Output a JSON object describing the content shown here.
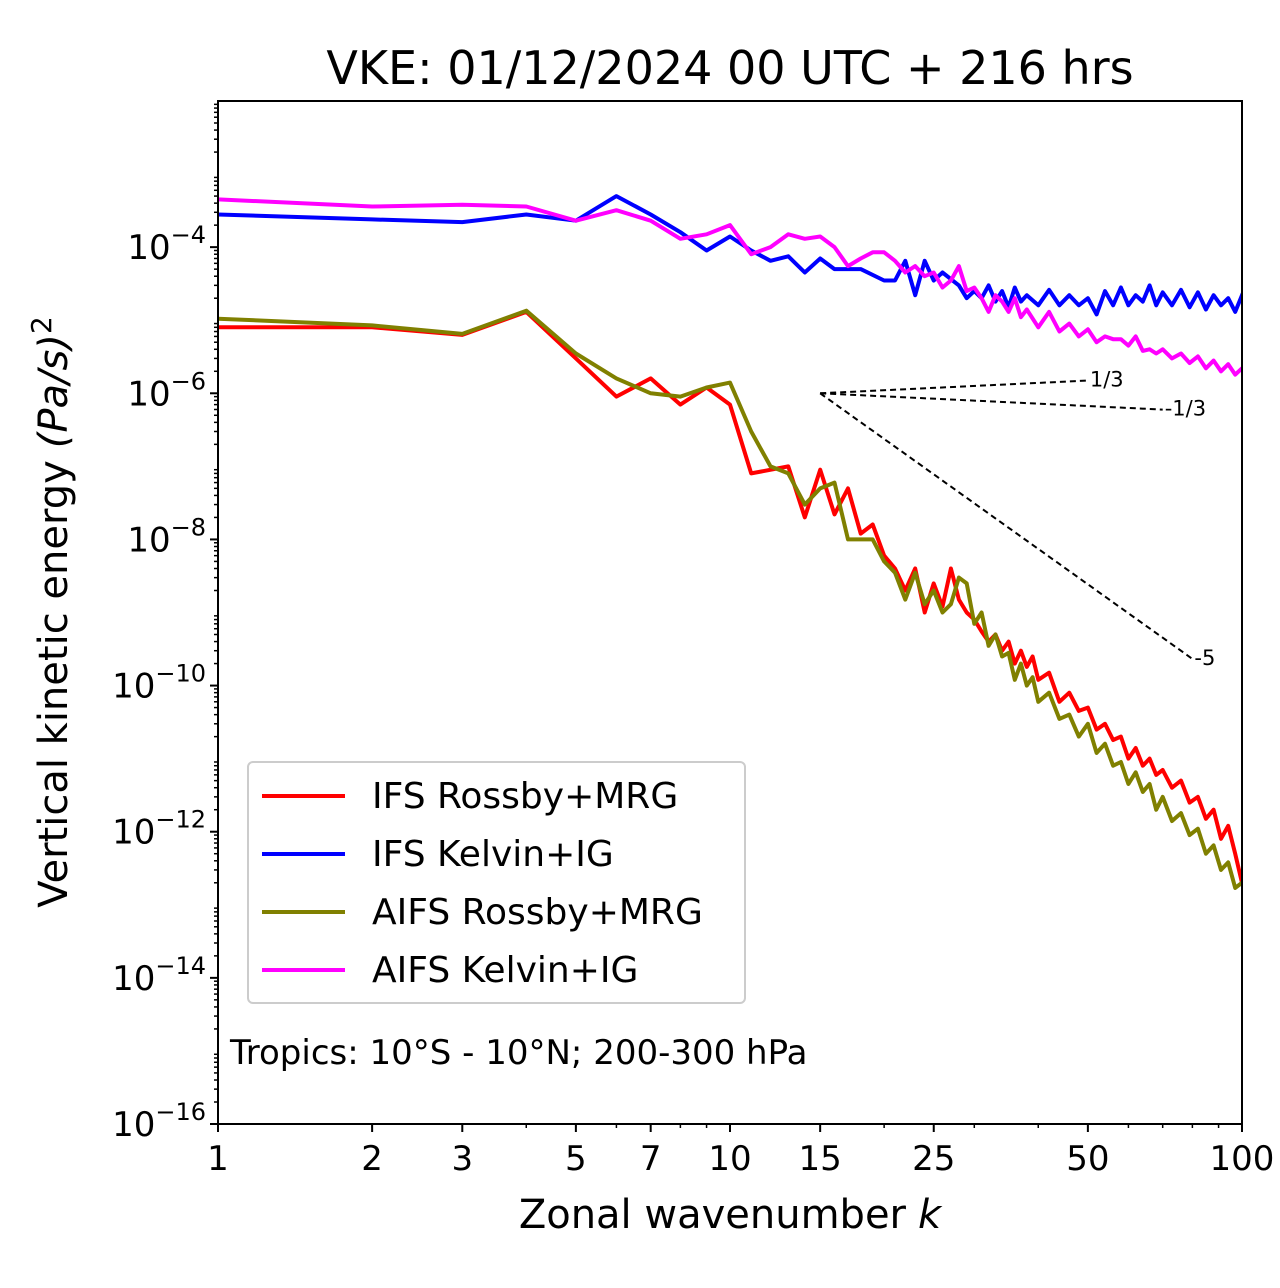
{
  "chart_data": {
    "type": "line",
    "title": "VKE: 01/12/2024 00 UTC + 216 hrs",
    "xlabel": "Zonal wavenumber",
    "xlabel_var": "k",
    "ylabel": "Vertical kinetic energy",
    "ylabel_unit": "(Pa/s)",
    "ylabel_sup": "2",
    "xscale": "log",
    "yscale": "log",
    "xlim": [
      1,
      100
    ],
    "ylim": [
      1e-16,
      0.01
    ],
    "x_ticks": [
      1,
      2,
      3,
      5,
      7,
      10,
      15,
      25,
      50,
      100
    ],
    "x_tick_labels": [
      "1",
      "2",
      "3",
      "5",
      "7",
      "10",
      "15",
      "25",
      "50",
      "100"
    ],
    "y_ticks": [
      -16,
      -14,
      -12,
      -10,
      -8,
      -6,
      -4
    ],
    "y_tick_base": "10",
    "legend_position": "lower-left",
    "annotation": "Tropics: 10°S - 10°N; 200-300 hPa",
    "reference_slopes": [
      {
        "label": "1/3",
        "slope": 0.3333,
        "x0": 15,
        "x1": 50,
        "y0": 1e-06
      },
      {
        "label": "-1/3",
        "slope": -0.3333,
        "x0": 15,
        "x1": 70,
        "y0": 1e-06
      },
      {
        "label": "-5",
        "slope": -5,
        "x0": 15,
        "x1": 80,
        "y0": 1e-06
      }
    ],
    "series": [
      {
        "name": "IFS Rossby+MRG",
        "color": "#ff0000",
        "points": [
          [
            1,
            8e-06
          ],
          [
            2,
            8e-06
          ],
          [
            3,
            6.3e-06
          ],
          [
            4,
            1.3e-05
          ],
          [
            5,
            3e-06
          ],
          [
            6,
            9e-07
          ],
          [
            7,
            1.6e-06
          ],
          [
            8,
            7e-07
          ],
          [
            9,
            1.2e-06
          ],
          [
            10,
            7e-07
          ],
          [
            11,
            8e-08
          ],
          [
            13,
            1e-07
          ],
          [
            14,
            2e-08
          ],
          [
            15,
            9e-08
          ],
          [
            16,
            2.2e-08
          ],
          [
            17,
            5e-08
          ],
          [
            18,
            1.2e-08
          ],
          [
            19,
            1.6e-08
          ],
          [
            20,
            6e-09
          ],
          [
            21,
            4e-09
          ],
          [
            22,
            2e-09
          ],
          [
            23,
            4e-09
          ],
          [
            24,
            1e-09
          ],
          [
            25,
            2.5e-09
          ],
          [
            26,
            1.2e-09
          ],
          [
            27,
            4e-09
          ],
          [
            28,
            1.5e-09
          ],
          [
            29,
            1e-09
          ],
          [
            30,
            8e-10
          ],
          [
            31,
            5.5e-10
          ],
          [
            32,
            4e-10
          ],
          [
            33,
            5e-10
          ],
          [
            34,
            3e-10
          ],
          [
            35,
            4e-10
          ],
          [
            36,
            2e-10
          ],
          [
            37,
            3e-10
          ],
          [
            38,
            1.8e-10
          ],
          [
            39,
            2.5e-10
          ],
          [
            40,
            1.2e-10
          ],
          [
            42,
            1.5e-10
          ],
          [
            44,
            6e-11
          ],
          [
            46,
            8e-11
          ],
          [
            48,
            4.5e-11
          ],
          [
            50,
            5e-11
          ],
          [
            52,
            2.5e-11
          ],
          [
            54,
            3e-11
          ],
          [
            56,
            1.8e-11
          ],
          [
            58,
            2e-11
          ],
          [
            60,
            1e-11
          ],
          [
            62,
            1.4e-11
          ],
          [
            64,
            8e-12
          ],
          [
            66,
            1e-11
          ],
          [
            68,
            6e-12
          ],
          [
            70,
            7e-12
          ],
          [
            73,
            4e-12
          ],
          [
            76,
            5e-12
          ],
          [
            79,
            2.5e-12
          ],
          [
            82,
            3e-12
          ],
          [
            85,
            1.5e-12
          ],
          [
            88,
            2e-12
          ],
          [
            91,
            8e-13
          ],
          [
            94,
            1.2e-12
          ],
          [
            97,
            5e-13
          ],
          [
            100,
            2e-13
          ]
        ]
      },
      {
        "name": "IFS Kelvin+IG",
        "color": "#0000ff",
        "points": [
          [
            1,
            0.00028
          ],
          [
            2,
            0.00024
          ],
          [
            3,
            0.00022
          ],
          [
            4,
            0.00028
          ],
          [
            5,
            0.00023
          ],
          [
            6,
            0.0005
          ],
          [
            7,
            0.00028
          ],
          [
            8,
            0.00016
          ],
          [
            9,
            9e-05
          ],
          [
            10,
            0.00014
          ],
          [
            11,
            9e-05
          ],
          [
            12,
            6.5e-05
          ],
          [
            13,
            7.5e-05
          ],
          [
            14,
            4.5e-05
          ],
          [
            15,
            7e-05
          ],
          [
            16,
            5e-05
          ],
          [
            18,
            5e-05
          ],
          [
            20,
            3.5e-05
          ],
          [
            21,
            3.5e-05
          ],
          [
            22,
            6.5e-05
          ],
          [
            23,
            2.2e-05
          ],
          [
            24,
            6.5e-05
          ],
          [
            25,
            3.5e-05
          ],
          [
            26,
            4.5e-05
          ],
          [
            28,
            3e-05
          ],
          [
            29,
            2e-05
          ],
          [
            30,
            2.5e-05
          ],
          [
            31,
            2e-05
          ],
          [
            32,
            3e-05
          ],
          [
            33,
            1.8e-05
          ],
          [
            34,
            2.5e-05
          ],
          [
            35,
            1.5e-05
          ],
          [
            36,
            2.8e-05
          ],
          [
            37,
            1.8e-05
          ],
          [
            38,
            2.2e-05
          ],
          [
            40,
            1.6e-05
          ],
          [
            42,
            2.6e-05
          ],
          [
            44,
            1.6e-05
          ],
          [
            46,
            2.2e-05
          ],
          [
            48,
            1.6e-05
          ],
          [
            50,
            2e-05
          ],
          [
            52,
            1.2e-05
          ],
          [
            54,
            2.5e-05
          ],
          [
            56,
            1.6e-05
          ],
          [
            58,
            2.8e-05
          ],
          [
            60,
            1.6e-05
          ],
          [
            62,
            2.2e-05
          ],
          [
            64,
            1.8e-05
          ],
          [
            66,
            3e-05
          ],
          [
            68,
            1.6e-05
          ],
          [
            70,
            2.4e-05
          ],
          [
            73,
            1.6e-05
          ],
          [
            76,
            2.6e-05
          ],
          [
            79,
            1.5e-05
          ],
          [
            82,
            2.4e-05
          ],
          [
            85,
            1.4e-05
          ],
          [
            88,
            2.2e-05
          ],
          [
            91,
            1.6e-05
          ],
          [
            94,
            2e-05
          ],
          [
            97,
            1.3e-05
          ],
          [
            100,
            2.2e-05
          ]
        ]
      },
      {
        "name": "AIFS Rossby+MRG",
        "color": "#808000",
        "points": [
          [
            1,
            1.05e-05
          ],
          [
            2,
            8.5e-06
          ],
          [
            3,
            6.5e-06
          ],
          [
            4,
            1.35e-05
          ],
          [
            5,
            3.5e-06
          ],
          [
            6,
            1.6e-06
          ],
          [
            7,
            1e-06
          ],
          [
            8,
            9e-07
          ],
          [
            9,
            1.2e-06
          ],
          [
            10,
            1.4e-06
          ],
          [
            11,
            3e-07
          ],
          [
            12,
            1e-07
          ],
          [
            13,
            8e-08
          ],
          [
            14,
            3e-08
          ],
          [
            15,
            5e-08
          ],
          [
            16,
            6e-08
          ],
          [
            17,
            1e-08
          ],
          [
            19,
            1e-08
          ],
          [
            20,
            5e-09
          ],
          [
            21,
            3.5e-09
          ],
          [
            22,
            1.5e-09
          ],
          [
            23,
            3.5e-09
          ],
          [
            24,
            1.3e-09
          ],
          [
            25,
            2e-09
          ],
          [
            26,
            1e-09
          ],
          [
            27,
            1.3e-09
          ],
          [
            28,
            3e-09
          ],
          [
            29,
            2.5e-09
          ],
          [
            30,
            7e-10
          ],
          [
            31,
            1e-09
          ],
          [
            32,
            3.5e-10
          ],
          [
            33,
            5e-10
          ],
          [
            34,
            2.5e-10
          ],
          [
            35,
            2.8e-10
          ],
          [
            36,
            1.2e-10
          ],
          [
            37,
            2e-10
          ],
          [
            38,
            1e-10
          ],
          [
            39,
            1.3e-10
          ],
          [
            40,
            6e-11
          ],
          [
            42,
            8e-11
          ],
          [
            44,
            3.5e-11
          ],
          [
            46,
            4e-11
          ],
          [
            48,
            2e-11
          ],
          [
            50,
            3e-11
          ],
          [
            52,
            1.2e-11
          ],
          [
            54,
            1.6e-11
          ],
          [
            56,
            8e-12
          ],
          [
            58,
            9e-12
          ],
          [
            60,
            4.5e-12
          ],
          [
            62,
            6.5e-12
          ],
          [
            64,
            3.5e-12
          ],
          [
            66,
            4.5e-12
          ],
          [
            68,
            2e-12
          ],
          [
            70,
            3e-12
          ],
          [
            73,
            1.4e-12
          ],
          [
            76,
            1.8e-12
          ],
          [
            79,
            9e-13
          ],
          [
            82,
            1.1e-12
          ],
          [
            85,
            5e-13
          ],
          [
            88,
            6.5e-13
          ],
          [
            91,
            3e-13
          ],
          [
            94,
            3.8e-13
          ],
          [
            97,
            1.7e-13
          ],
          [
            100,
            2e-13
          ]
        ]
      },
      {
        "name": "AIFS Kelvin+IG",
        "color": "#ff00ff",
        "points": [
          [
            1,
            0.00045
          ],
          [
            2,
            0.00036
          ],
          [
            3,
            0.00038
          ],
          [
            4,
            0.00036
          ],
          [
            5,
            0.00023
          ],
          [
            6,
            0.00032
          ],
          [
            7,
            0.00023
          ],
          [
            8,
            0.00013
          ],
          [
            9,
            0.00015
          ],
          [
            10,
            0.0002
          ],
          [
            11,
            8e-05
          ],
          [
            12,
            0.0001
          ],
          [
            13,
            0.00015
          ],
          [
            14,
            0.00013
          ],
          [
            15,
            0.00014
          ],
          [
            16,
            0.0001
          ],
          [
            17,
            5.5e-05
          ],
          [
            18,
            7e-05
          ],
          [
            19,
            8.5e-05
          ],
          [
            20,
            8.5e-05
          ],
          [
            21,
            6.5e-05
          ],
          [
            22,
            4.5e-05
          ],
          [
            23,
            5.5e-05
          ],
          [
            24,
            4e-05
          ],
          [
            25,
            4.5e-05
          ],
          [
            26,
            2.8e-05
          ],
          [
            27,
            3.5e-05
          ],
          [
            28,
            5.5e-05
          ],
          [
            29,
            2.5e-05
          ],
          [
            30,
            2.8e-05
          ],
          [
            31,
            2e-05
          ],
          [
            32,
            1.3e-05
          ],
          [
            33,
            2.2e-05
          ],
          [
            34,
            1.8e-05
          ],
          [
            35,
            1.3e-05
          ],
          [
            36,
            2e-05
          ],
          [
            37,
            1.1e-05
          ],
          [
            38,
            1.4e-05
          ],
          [
            40,
            8e-06
          ],
          [
            42,
            1.3e-05
          ],
          [
            44,
            7e-06
          ],
          [
            46,
            9e-06
          ],
          [
            48,
            6e-06
          ],
          [
            50,
            7.5e-06
          ],
          [
            52,
            5e-06
          ],
          [
            54,
            6e-06
          ],
          [
            56,
            5.5e-06
          ],
          [
            58,
            5.5e-06
          ],
          [
            60,
            4.5e-06
          ],
          [
            62,
            6e-06
          ],
          [
            64,
            3.8e-06
          ],
          [
            66,
            4e-06
          ],
          [
            68,
            3.5e-06
          ],
          [
            70,
            4e-06
          ],
          [
            73,
            3e-06
          ],
          [
            76,
            3.5e-06
          ],
          [
            79,
            2.6e-06
          ],
          [
            82,
            3.2e-06
          ],
          [
            85,
            2.2e-06
          ],
          [
            88,
            2.8e-06
          ],
          [
            91,
            2e-06
          ],
          [
            94,
            2.5e-06
          ],
          [
            97,
            1.8e-06
          ],
          [
            100,
            2.2e-06
          ]
        ]
      }
    ]
  }
}
